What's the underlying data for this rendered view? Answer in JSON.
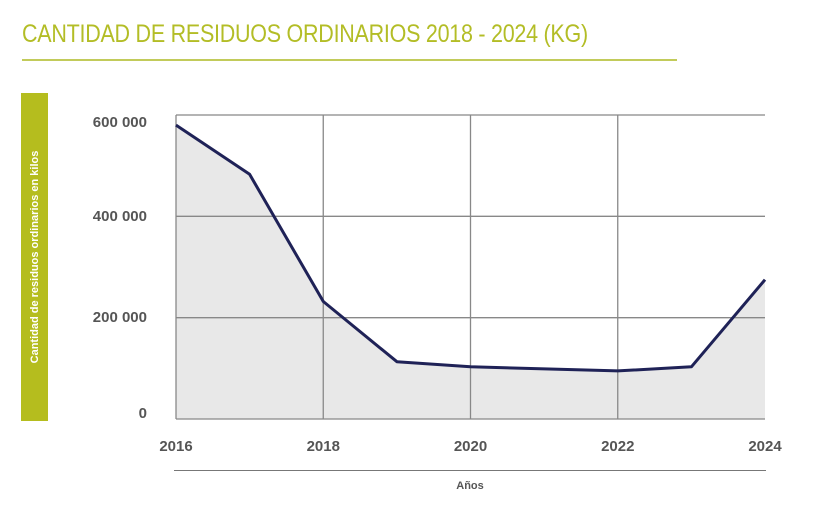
{
  "title": "CANTIDAD DE RESIDUOS ORDINARIOS 2018 - 2024 (KG)",
  "colors": {
    "title": "#b3bd26",
    "title_rule": "#c2cb5a",
    "ylabel_bar": "#b5bd1e",
    "line": "#1f2257",
    "area_fill": "#e8e8e8",
    "grid": "#888888",
    "tick_text": "#555555"
  },
  "chart_data": {
    "type": "area",
    "title": "CANTIDAD DE RESIDUOS ORDINARIOS 2018 - 2024 (KG)",
    "xlabel": "Años",
    "ylabel": "Cantidad de residuos ordinarios en kilos",
    "x": [
      2016,
      2017,
      2018,
      2019,
      2020,
      2022,
      2023,
      2024
    ],
    "values": [
      580000,
      483000,
      232000,
      113000,
      103000,
      95000,
      103000,
      275000
    ],
    "xlim": [
      2016,
      2024
    ],
    "ylim": [
      0,
      600000
    ],
    "x_ticks": [
      "2016",
      "2018",
      "2020",
      "2022",
      "2024"
    ],
    "y_ticks": [
      "0",
      "200 000",
      "400 000",
      "600 000"
    ],
    "grid": true,
    "legend": null
  }
}
